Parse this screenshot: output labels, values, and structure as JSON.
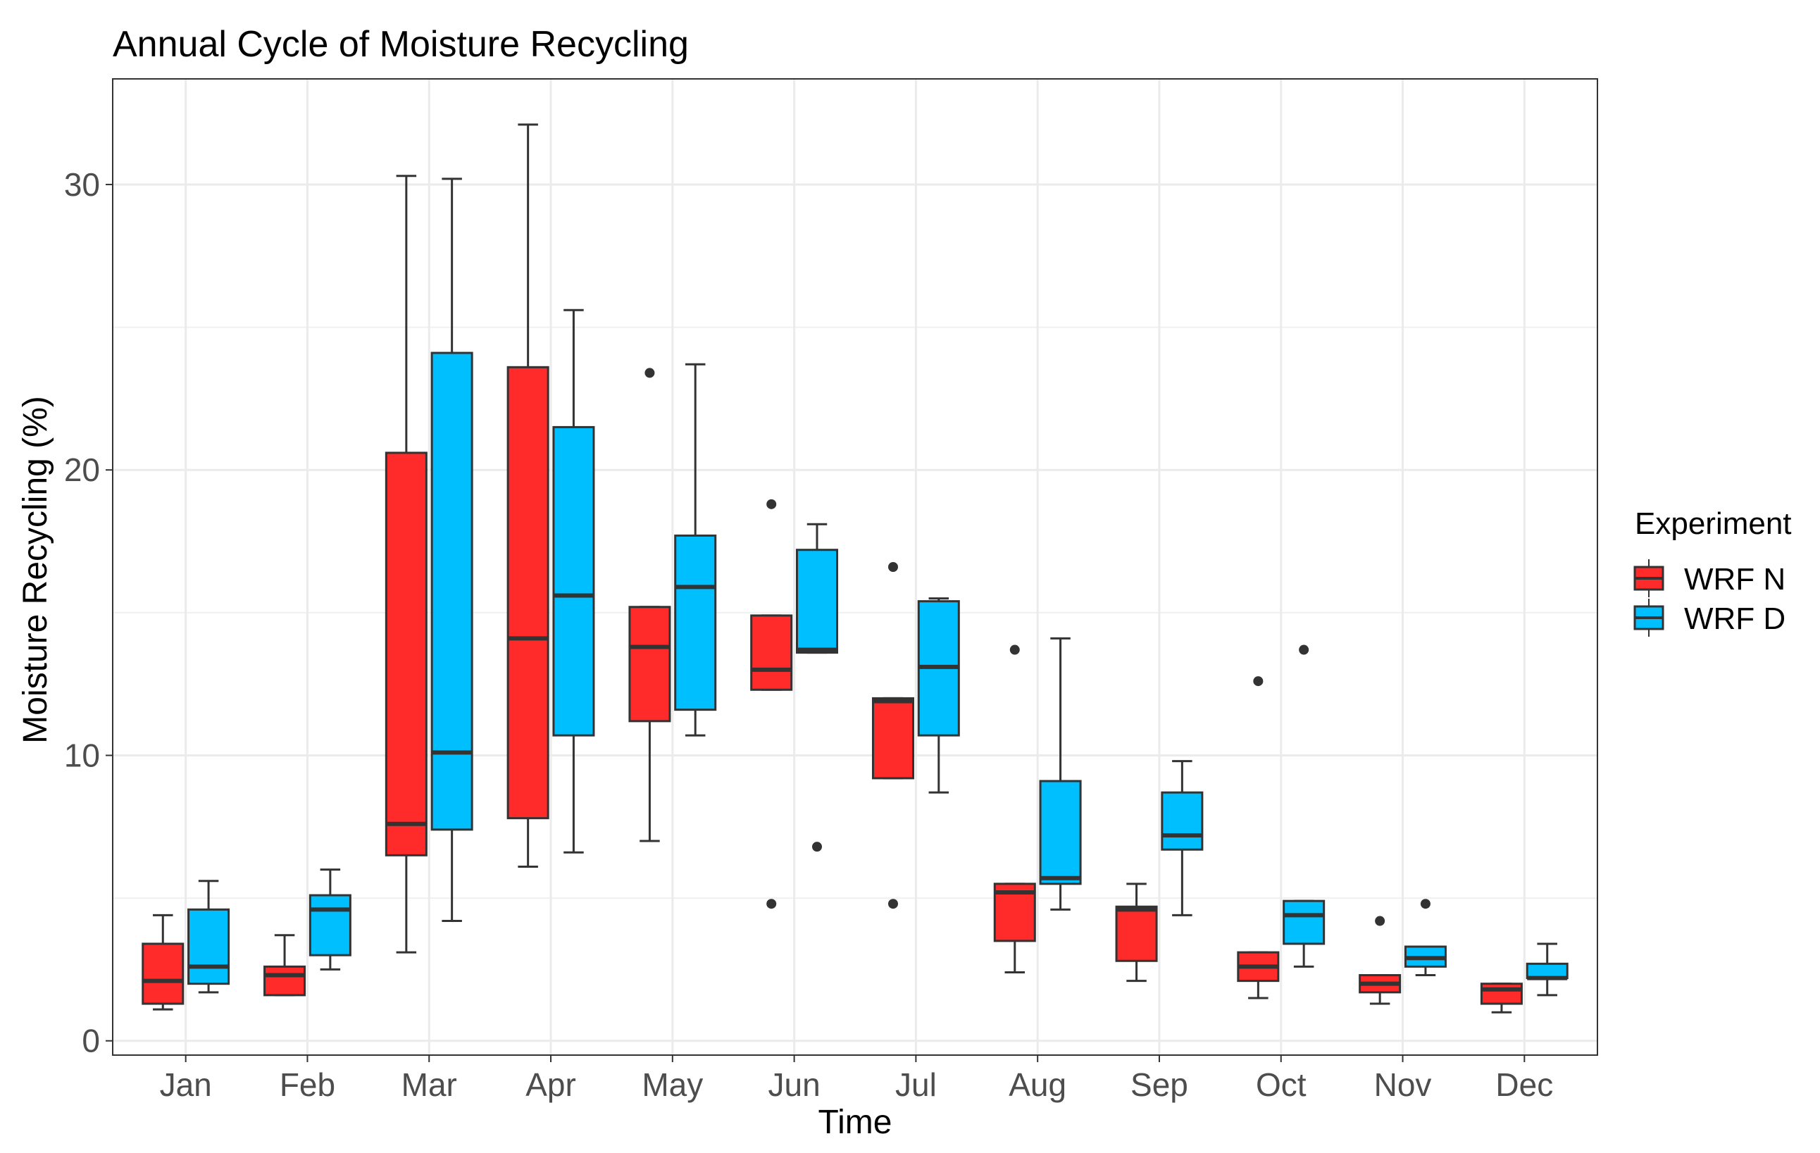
{
  "chart_data": {
    "type": "boxplot",
    "title": "Annual Cycle of Moisture Recycling",
    "xlabel": "Time",
    "ylabel": "Moisture Recycling (%)",
    "ylim": [
      -0.5,
      33.7
    ],
    "yticks": [
      0,
      10,
      20,
      30
    ],
    "grid": true,
    "legend": {
      "title": "Experiment",
      "position": "right"
    },
    "categories": [
      "Jan",
      "Feb",
      "Mar",
      "Apr",
      "May",
      "Jun",
      "Jul",
      "Aug",
      "Sep",
      "Oct",
      "Nov",
      "Dec"
    ],
    "series": [
      {
        "name": "WRF N",
        "color": "#ff2a2a",
        "boxes": [
          {
            "lower": 1.1,
            "q1": 1.3,
            "median": 2.1,
            "q3": 3.4,
            "upper": 4.4,
            "outliers": []
          },
          {
            "lower": 1.6,
            "q1": 1.6,
            "median": 2.3,
            "q3": 2.6,
            "upper": 3.7,
            "outliers": []
          },
          {
            "lower": 3.1,
            "q1": 6.5,
            "median": 7.6,
            "q3": 20.6,
            "upper": 30.3,
            "outliers": []
          },
          {
            "lower": 6.1,
            "q1": 7.8,
            "median": 14.1,
            "q3": 23.6,
            "upper": 32.1,
            "outliers": []
          },
          {
            "lower": 7.0,
            "q1": 11.2,
            "median": 13.8,
            "q3": 15.2,
            "upper": 15.2,
            "outliers": [
              23.4
            ]
          },
          {
            "lower": 12.3,
            "q1": 12.3,
            "median": 13.0,
            "q3": 14.9,
            "upper": 14.9,
            "outliers": [
              18.8,
              4.8
            ]
          },
          {
            "lower": 9.2,
            "q1": 9.2,
            "median": 11.9,
            "q3": 12.0,
            "upper": 12.0,
            "outliers": [
              16.6,
              4.8
            ]
          },
          {
            "lower": 2.4,
            "q1": 3.5,
            "median": 5.2,
            "q3": 5.5,
            "upper": 5.5,
            "outliers": [
              13.7
            ]
          },
          {
            "lower": 2.1,
            "q1": 2.8,
            "median": 4.6,
            "q3": 4.7,
            "upper": 5.5,
            "outliers": []
          },
          {
            "lower": 1.5,
            "q1": 2.1,
            "median": 2.6,
            "q3": 3.1,
            "upper": 3.1,
            "outliers": [
              12.6
            ]
          },
          {
            "lower": 1.3,
            "q1": 1.7,
            "median": 2.0,
            "q3": 2.3,
            "upper": 2.3,
            "outliers": [
              4.2
            ]
          },
          {
            "lower": 1.0,
            "q1": 1.3,
            "median": 1.8,
            "q3": 2.0,
            "upper": 2.0,
            "outliers": []
          }
        ]
      },
      {
        "name": "WRF D",
        "color": "#00bfff",
        "boxes": [
          {
            "lower": 1.7,
            "q1": 2.0,
            "median": 2.6,
            "q3": 4.6,
            "upper": 5.6,
            "outliers": []
          },
          {
            "lower": 2.5,
            "q1": 3.0,
            "median": 4.6,
            "q3": 5.1,
            "upper": 6.0,
            "outliers": []
          },
          {
            "lower": 4.2,
            "q1": 7.4,
            "median": 10.1,
            "q3": 24.1,
            "upper": 30.2,
            "outliers": []
          },
          {
            "lower": 6.6,
            "q1": 10.7,
            "median": 15.6,
            "q3": 21.5,
            "upper": 25.6,
            "outliers": []
          },
          {
            "lower": 10.7,
            "q1": 11.6,
            "median": 15.9,
            "q3": 17.7,
            "upper": 23.7,
            "outliers": []
          },
          {
            "lower": 13.6,
            "q1": 13.6,
            "median": 13.7,
            "q3": 17.2,
            "upper": 18.1,
            "outliers": [
              6.8
            ]
          },
          {
            "lower": 8.7,
            "q1": 10.7,
            "median": 13.1,
            "q3": 15.4,
            "upper": 15.5,
            "outliers": []
          },
          {
            "lower": 4.6,
            "q1": 5.5,
            "median": 5.7,
            "q3": 9.1,
            "upper": 14.1,
            "outliers": []
          },
          {
            "lower": 4.4,
            "q1": 6.7,
            "median": 7.2,
            "q3": 8.7,
            "upper": 9.8,
            "outliers": []
          },
          {
            "lower": 2.6,
            "q1": 3.4,
            "median": 4.4,
            "q3": 4.9,
            "upper": 4.9,
            "outliers": [
              13.7
            ]
          },
          {
            "lower": 2.3,
            "q1": 2.6,
            "median": 2.9,
            "q3": 3.3,
            "upper": 3.3,
            "outliers": [
              4.8
            ]
          },
          {
            "lower": 1.6,
            "q1": 2.2,
            "median": 2.2,
            "q3": 2.7,
            "upper": 3.4,
            "outliers": []
          }
        ]
      }
    ]
  }
}
